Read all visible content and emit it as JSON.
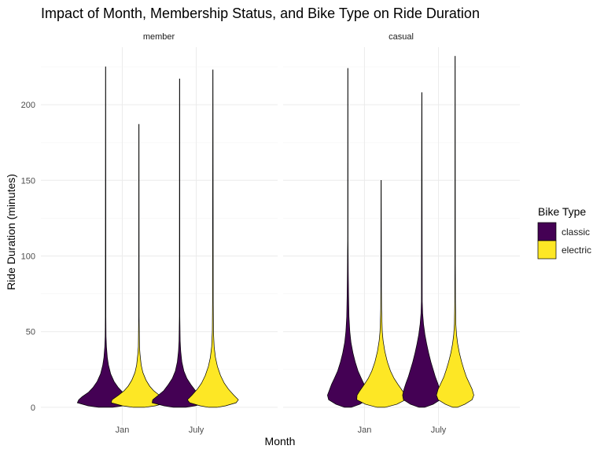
{
  "chart_data": {
    "type": "violin",
    "title": "Impact of Month, Membership Status, and Bike Type on Ride Duration",
    "xlabel": "Month",
    "ylabel": "Ride Duration (minutes)",
    "ylim": [
      -12,
      238
    ],
    "y_ticks": [
      0,
      50,
      100,
      150,
      200
    ],
    "categories": [
      "Jan",
      "July"
    ],
    "facets": [
      "member",
      "casual"
    ],
    "legend": {
      "title": "Bike Type",
      "position": "right",
      "entries": [
        {
          "name": "classic",
          "color": "#440154"
        },
        {
          "name": "electric",
          "color": "#FDE725"
        }
      ]
    },
    "series": [
      {
        "facet": "member",
        "month": "Jan",
        "bike_type": "classic",
        "max": 225,
        "profile": [
          [
            0,
            0.25
          ],
          [
            1,
            0.62
          ],
          [
            3,
            1.0
          ],
          [
            5,
            0.95
          ],
          [
            7,
            0.83
          ],
          [
            10,
            0.6
          ],
          [
            13,
            0.45
          ],
          [
            17,
            0.3
          ],
          [
            22,
            0.18
          ],
          [
            28,
            0.1
          ],
          [
            33,
            0.06
          ],
          [
            40,
            0.03
          ],
          [
            47,
            0.015
          ],
          [
            60,
            0.01
          ],
          [
            225,
            0.005
          ]
        ]
      },
      {
        "facet": "member",
        "month": "Jan",
        "bike_type": "electric",
        "max": 187,
        "profile": [
          [
            0,
            0.2
          ],
          [
            1,
            0.58
          ],
          [
            3,
            0.98
          ],
          [
            5,
            0.95
          ],
          [
            8,
            0.72
          ],
          [
            11,
            0.52
          ],
          [
            14,
            0.38
          ],
          [
            18,
            0.25
          ],
          [
            23,
            0.14
          ],
          [
            28,
            0.08
          ],
          [
            35,
            0.04
          ],
          [
            40,
            0.02
          ],
          [
            60,
            0.008
          ],
          [
            187,
            0.005
          ]
        ]
      },
      {
        "facet": "member",
        "month": "July",
        "bike_type": "classic",
        "max": 217,
        "profile": [
          [
            0,
            0.22
          ],
          [
            1,
            0.55
          ],
          [
            3,
            0.97
          ],
          [
            5,
            0.95
          ],
          [
            8,
            0.75
          ],
          [
            11,
            0.56
          ],
          [
            15,
            0.4
          ],
          [
            19,
            0.26
          ],
          [
            24,
            0.15
          ],
          [
            30,
            0.08
          ],
          [
            37,
            0.04
          ],
          [
            44,
            0.02
          ],
          [
            60,
            0.008
          ],
          [
            217,
            0.005
          ]
        ]
      },
      {
        "facet": "member",
        "month": "July",
        "bike_type": "electric",
        "max": 223,
        "profile": [
          [
            0,
            0.15
          ],
          [
            1,
            0.45
          ],
          [
            3,
            0.82
          ],
          [
            5,
            0.9
          ],
          [
            8,
            0.74
          ],
          [
            12,
            0.55
          ],
          [
            16,
            0.4
          ],
          [
            21,
            0.27
          ],
          [
            27,
            0.16
          ],
          [
            33,
            0.09
          ],
          [
            40,
            0.045
          ],
          [
            50,
            0.02
          ],
          [
            70,
            0.012
          ],
          [
            223,
            0.005
          ]
        ]
      },
      {
        "facet": "casual",
        "month": "Jan",
        "bike_type": "classic",
        "max": 224,
        "profile": [
          [
            0,
            0.12
          ],
          [
            2,
            0.42
          ],
          [
            5,
            0.68
          ],
          [
            8,
            0.72
          ],
          [
            11,
            0.66
          ],
          [
            15,
            0.58
          ],
          [
            19,
            0.48
          ],
          [
            24,
            0.36
          ],
          [
            30,
            0.26
          ],
          [
            36,
            0.18
          ],
          [
            43,
            0.11
          ],
          [
            50,
            0.07
          ],
          [
            60,
            0.04
          ],
          [
            75,
            0.025
          ],
          [
            90,
            0.015
          ],
          [
            110,
            0.007
          ],
          [
            224,
            0.005
          ]
        ]
      },
      {
        "facet": "casual",
        "month": "Jan",
        "bike_type": "electric",
        "max": 150,
        "profile": [
          [
            0,
            0.14
          ],
          [
            2,
            0.55
          ],
          [
            5,
            0.86
          ],
          [
            8,
            0.85
          ],
          [
            11,
            0.75
          ],
          [
            15,
            0.6
          ],
          [
            19,
            0.46
          ],
          [
            24,
            0.33
          ],
          [
            30,
            0.22
          ],
          [
            37,
            0.13
          ],
          [
            44,
            0.07
          ],
          [
            50,
            0.04
          ],
          [
            65,
            0.015
          ],
          [
            78,
            0.01
          ],
          [
            150,
            0.005
          ]
        ]
      },
      {
        "facet": "casual",
        "month": "July",
        "bike_type": "classic",
        "max": 208,
        "profile": [
          [
            0,
            0.1
          ],
          [
            2,
            0.4
          ],
          [
            5,
            0.65
          ],
          [
            8,
            0.68
          ],
          [
            12,
            0.63
          ],
          [
            16,
            0.56
          ],
          [
            20,
            0.48
          ],
          [
            25,
            0.4
          ],
          [
            30,
            0.32
          ],
          [
            36,
            0.24
          ],
          [
            42,
            0.17
          ],
          [
            48,
            0.11
          ],
          [
            55,
            0.06
          ],
          [
            62,
            0.03
          ],
          [
            70,
            0.015
          ],
          [
            208,
            0.005
          ]
        ]
      },
      {
        "facet": "casual",
        "month": "July",
        "bike_type": "electric",
        "max": 232,
        "profile": [
          [
            0,
            0.08
          ],
          [
            2,
            0.34
          ],
          [
            5,
            0.6
          ],
          [
            8,
            0.66
          ],
          [
            12,
            0.6
          ],
          [
            16,
            0.5
          ],
          [
            20,
            0.4
          ],
          [
            25,
            0.31
          ],
          [
            30,
            0.23
          ],
          [
            36,
            0.15
          ],
          [
            42,
            0.09
          ],
          [
            48,
            0.05
          ],
          [
            55,
            0.025
          ],
          [
            70,
            0.012
          ],
          [
            95,
            0.008
          ],
          [
            120,
            0.008
          ],
          [
            232,
            0.005
          ]
        ]
      }
    ]
  }
}
